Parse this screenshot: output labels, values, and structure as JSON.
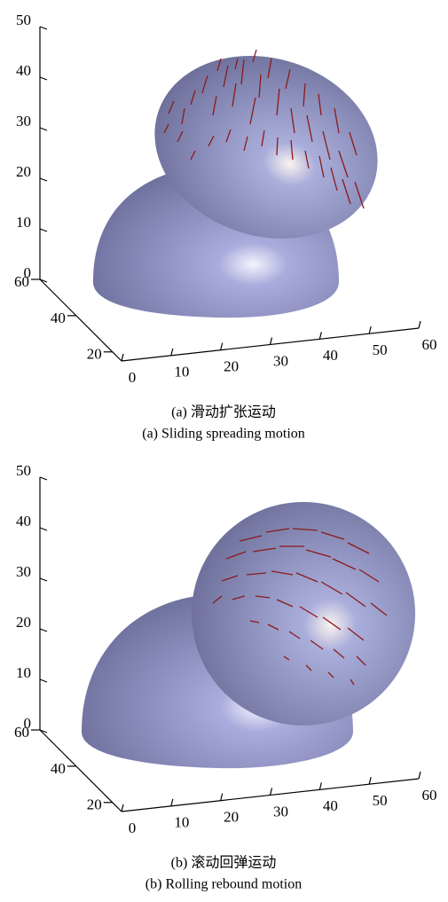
{
  "chart_data": [
    {
      "type": "surface3d",
      "xlim": [
        0,
        60
      ],
      "ylim": [
        15,
        60
      ],
      "zlim": [
        0,
        50
      ],
      "xticks": [
        0,
        10,
        20,
        30,
        40,
        50,
        60
      ],
      "yticks": [
        20,
        40,
        60
      ],
      "zticks": [
        0,
        10,
        20,
        30,
        40,
        50
      ],
      "caption_zh": "(a) 滑动扩张运动",
      "caption_en": "(a) Sliding spreading motion"
    },
    {
      "type": "surface3d",
      "xlim": [
        0,
        60
      ],
      "ylim": [
        15,
        60
      ],
      "zlim": [
        0,
        50
      ],
      "xticks": [
        0,
        10,
        20,
        30,
        40,
        50,
        60
      ],
      "yticks": [
        20,
        40,
        60
      ],
      "zticks": [
        0,
        10,
        20,
        30,
        40,
        50
      ],
      "caption_zh": "(b) 滚动回弹运动",
      "caption_en": "(b) Rolling rebound motion"
    }
  ]
}
